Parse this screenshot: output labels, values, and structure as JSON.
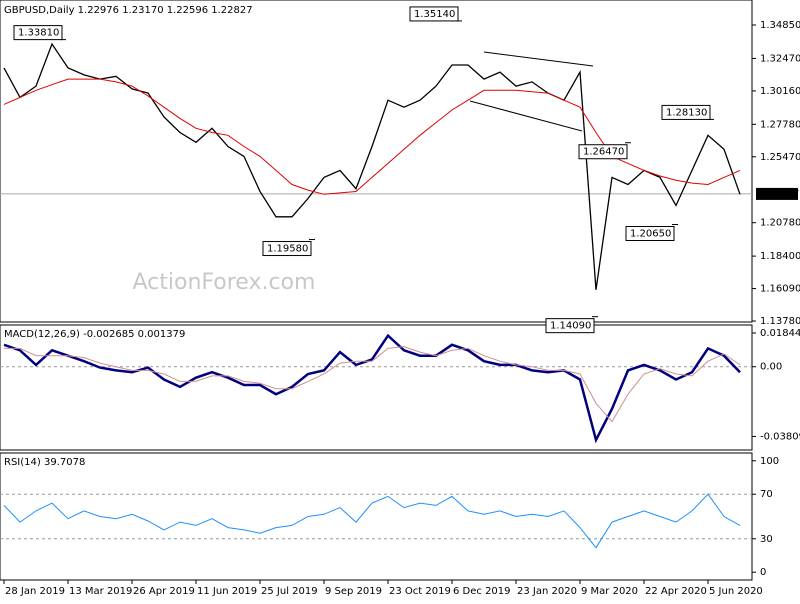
{
  "chart_data": [
    {
      "type": "line",
      "title": "GBPUSD,Daily  1.22976 1.23170 1.22596 1.22827",
      "watermark": "ActionForex.com",
      "xlim": [
        -0.25,
        46.75
      ],
      "ylim": [
        1.1371,
        1.3663
      ],
      "yticks": [
        {
          "value": 1.3485,
          "label": "1.34850"
        },
        {
          "value": 1.3247,
          "label": "1.32470"
        },
        {
          "value": 1.3016,
          "label": "1.30160"
        },
        {
          "value": 1.2778,
          "label": "1.27780"
        },
        {
          "value": 1.2547,
          "label": "1.25470"
        },
        {
          "value": 1.2078,
          "label": "1.20780"
        },
        {
          "value": 1.184,
          "label": "1.18400"
        },
        {
          "value": 1.1609,
          "label": "1.16090"
        },
        {
          "value": 1.1378,
          "label": "1.13780"
        }
      ],
      "current_price": 1.22827,
      "annotations": [
        {
          "value": 1.3381,
          "label": "1.33810"
        },
        {
          "value": 1.3514,
          "label": "1.35140"
        },
        {
          "value": 1.1958,
          "label": "1.19580"
        },
        {
          "value": 1.2647,
          "label": "1.26470"
        },
        {
          "value": 1.2813,
          "label": "1.28130"
        },
        {
          "value": 1.2065,
          "label": "1.20650"
        },
        {
          "value": 1.1409,
          "label": "1.14090"
        }
      ],
      "series": [
        {
          "name": "Close",
          "color": "#000000",
          "values": [
            1.318,
            1.297,
            1.305,
            1.335,
            1.318,
            1.313,
            1.31,
            1.312,
            1.303,
            1.3,
            1.283,
            1.272,
            1.265,
            1.275,
            1.262,
            1.255,
            1.23,
            1.212,
            1.212,
            1.225,
            1.24,
            1.245,
            1.232,
            1.262,
            1.295,
            1.29,
            1.295,
            1.305,
            1.32,
            1.32,
            1.31,
            1.315,
            1.305,
            1.308,
            1.3,
            1.295,
            1.315,
            1.16,
            1.24,
            1.235,
            1.245,
            1.24,
            1.22,
            1.245,
            1.27,
            1.26,
            1.228
          ]
        },
        {
          "name": "MA",
          "color": "#e00000",
          "values": [
            1.292,
            1.297,
            1.302,
            1.306,
            1.31,
            1.31,
            1.31,
            1.308,
            1.305,
            1.298,
            1.29,
            1.282,
            1.275,
            1.272,
            1.27,
            1.262,
            1.255,
            1.245,
            1.235,
            1.231,
            1.228,
            1.229,
            1.23,
            1.24,
            1.25,
            1.26,
            1.27,
            1.279,
            1.288,
            1.295,
            1.302,
            1.302,
            1.302,
            1.301,
            1.3,
            1.295,
            1.29,
            1.272,
            1.255,
            1.25,
            1.245,
            1.241,
            1.238,
            1.236,
            1.235,
            1.24,
            1.245
          ]
        }
      ]
    },
    {
      "type": "line",
      "title": "MACD(12,26,9) -0.002685 0.001379",
      "xlim": [
        -0.25,
        46.75
      ],
      "ylim": [
        -0.0455,
        0.0228
      ],
      "yticks": [
        0.018442,
        {
          "value": 0,
          "label": "0.00"
        },
        -0.038095
      ],
      "levels": [
        0
      ],
      "series": [
        {
          "name": "MACD",
          "color": "#000080",
          "values": [
            0.012,
            0.009,
            0.001,
            0.009,
            0.006,
            0.003,
            -0.0005,
            -0.002,
            -0.003,
            -0.0005,
            -0.007,
            -0.011,
            -0.006,
            -0.003,
            -0.006,
            -0.01,
            -0.01,
            -0.015,
            -0.011,
            -0.004,
            -0.002,
            0.008,
            0.001,
            0.004,
            0.017,
            0.009,
            0.006,
            0.006,
            0.012,
            0.009,
            0.003,
            0.001,
            0.001,
            -0.002,
            -0.003,
            -0.002,
            -0.007,
            -0.04,
            -0.023,
            -0.002,
            0.001,
            -0.002,
            -0.007,
            -0.003,
            0.01,
            0.006,
            -0.003
          ]
        },
        {
          "name": "Signal",
          "color": "#d09090",
          "values": [
            0.01,
            0.01,
            0.006,
            0.006,
            0.006,
            0.005,
            0.002,
            0.0,
            -0.002,
            -0.002,
            -0.004,
            -0.008,
            -0.008,
            -0.005,
            -0.005,
            -0.008,
            -0.009,
            -0.012,
            -0.012,
            -0.008,
            -0.004,
            0.002,
            0.003,
            0.003,
            0.01,
            0.011,
            0.008,
            0.006,
            0.009,
            0.01,
            0.006,
            0.003,
            0.001,
            0.0,
            -0.002,
            -0.002,
            -0.004,
            -0.02,
            -0.03,
            -0.015,
            -0.004,
            -0.001,
            -0.004,
            -0.005,
            0.003,
            0.007,
            0.001
          ]
        }
      ]
    },
    {
      "type": "line",
      "title": "RSI(14) 39.7078",
      "xlim": [
        -0.25,
        46.75
      ],
      "ylim": [
        -7,
        107
      ],
      "yticks": [
        100,
        70,
        30,
        0
      ],
      "levels": [
        70,
        30
      ],
      "xticks": [
        {
          "value": 0,
          "label": "28 Jan 2019"
        },
        {
          "value": 4,
          "label": "13 Mar 2019"
        },
        {
          "value": 8,
          "label": "26 Apr 2019"
        },
        {
          "value": 12,
          "label": "11 Jun 2019"
        },
        {
          "value": 16,
          "label": "25 Jul 2019"
        },
        {
          "value": 20,
          "label": "9 Sep 2019"
        },
        {
          "value": 24,
          "label": "23 Oct 2019"
        },
        {
          "value": 28,
          "label": "6 Dec 2019"
        },
        {
          "value": 32,
          "label": "23 Jan 2020"
        },
        {
          "value": 36,
          "label": "9 Mar 2020"
        },
        {
          "value": 40,
          "label": "22 Apr 2020"
        },
        {
          "value": 44,
          "label": "5 Jun 2020"
        }
      ],
      "series": [
        {
          "name": "RSI",
          "color": "#1e90ff",
          "values": [
            60,
            45,
            55,
            62,
            48,
            55,
            50,
            48,
            52,
            46,
            38,
            45,
            42,
            48,
            40,
            38,
            35,
            40,
            42,
            50,
            52,
            58,
            45,
            62,
            68,
            58,
            62,
            60,
            68,
            55,
            52,
            55,
            50,
            52,
            50,
            55,
            40,
            22,
            45,
            50,
            55,
            50,
            45,
            55,
            70,
            50,
            42
          ]
        }
      ]
    }
  ]
}
